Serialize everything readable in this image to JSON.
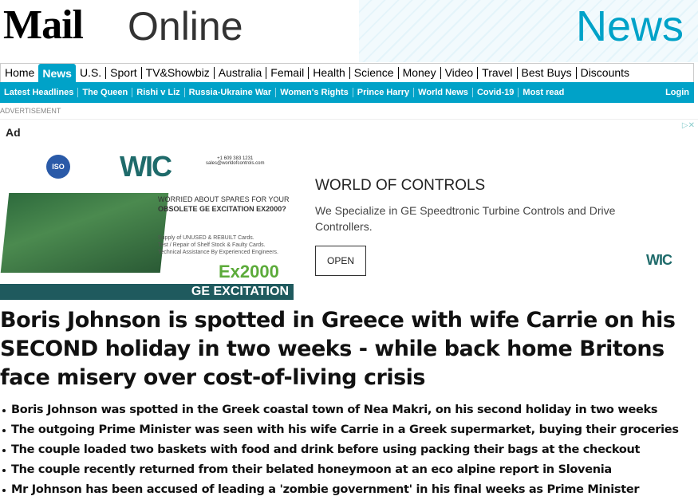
{
  "masthead": {
    "logo_bold": "Mail",
    "logo_light": "Online",
    "section": "News"
  },
  "nav": {
    "primary": [
      "Home",
      "News",
      "U.S.",
      "Sport",
      "TV&Showbiz",
      "Australia",
      "Femail",
      "Health",
      "Science",
      "Money",
      "Video",
      "Travel",
      "Best Buys",
      "Discounts"
    ],
    "active": "News",
    "secondary": [
      "Latest Headlines",
      "The Queen",
      "Rishi v Liz",
      "Russia-Ukraine War",
      "Women's Rights",
      "Prince Harry",
      "World News",
      "Covid-19",
      "Most read"
    ],
    "login": "Login"
  },
  "ad": {
    "label": "ADVERTISEMENT",
    "tag": "Ad",
    "close": "▷✕",
    "banner": {
      "iso": "ISO",
      "logo": "WIC",
      "contact": "+1 609 383 1231\nsales@worldofcontrols.com",
      "worried": "WORRIED ABOUT SPARES FOR YOUR",
      "worried2": "OBSOLETE GE EXCITATION EX2000?",
      "supply": [
        "Supply of UNUSED & REBUILT Cards.",
        "Test / Repair of Shelf Stock & Faulty Cards.",
        "Technical Assistance By Experienced Engineers."
      ],
      "model": "Ex2000",
      "product": "GE EXCITATION"
    },
    "title": "WORLD OF CONTROLS",
    "description": "We Specialize in GE Speedtronic Turbine Controls and Drive Controllers.",
    "cta": "OPEN",
    "small_logo": "WIC"
  },
  "article": {
    "headline": "Boris Johnson is spotted in Greece with wife Carrie on his SECOND holiday in two weeks - while back home Britons face misery over cost-of-living crisis",
    "bullets": [
      "Boris Johnson was spotted in the Greek coastal town of Nea Makri, on his second holiday in two weeks",
      "The outgoing Prime Minister was seen with his wife Carrie in a Greek supermarket, buying their groceries",
      "The couple loaded two baskets with food and drink before using packing their bags at the checkout",
      "The couple recently returned from their belated honeymoon at an eco alpine report in Slovenia",
      "Mr Johnson has been accused of  leading a 'zombie government' in his final weeks as Prime Minister"
    ]
  },
  "colors": {
    "accent": "#00a2c8"
  }
}
